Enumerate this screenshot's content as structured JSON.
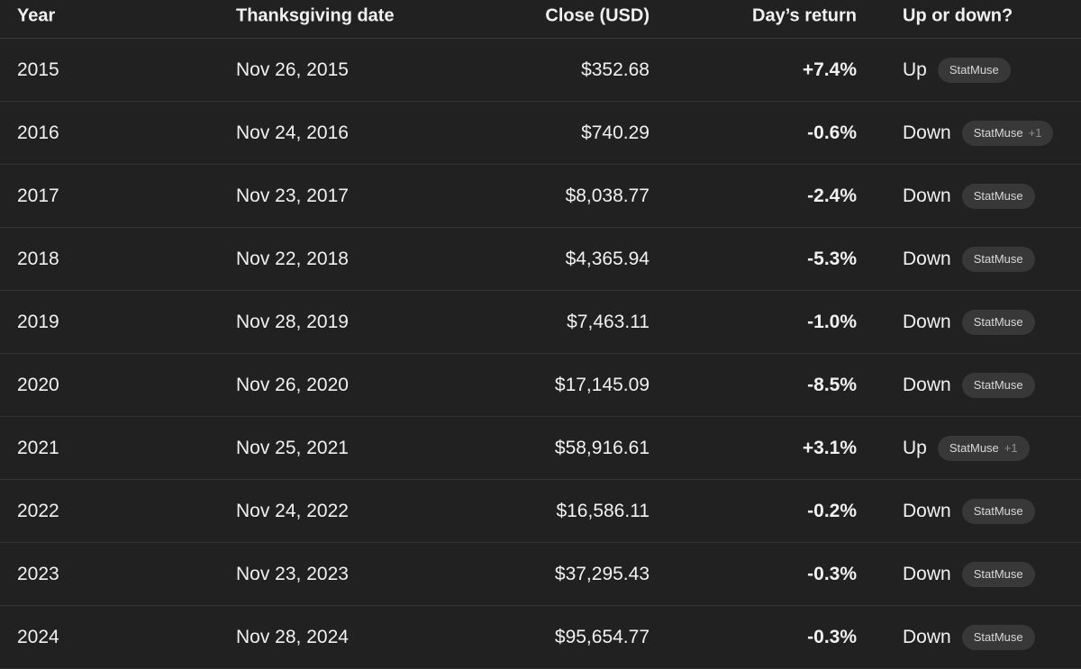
{
  "table": {
    "columns": [
      "Year",
      "Thanksgiving date",
      "Close (USD)",
      "Day’s return",
      "Up or down?"
    ],
    "rows": [
      {
        "year": "2015",
        "date": "Nov 26, 2015",
        "close": "$352.68",
        "return": "+7.4%",
        "direction": "Up",
        "source": "StatMuse"
      },
      {
        "year": "2016",
        "date": "Nov 24, 2016",
        "close": "$740.29",
        "return": "-0.6%",
        "direction": "Down",
        "source": "StatMuse",
        "extra": "+1"
      },
      {
        "year": "2017",
        "date": "Nov 23, 2017",
        "close": "$8,038.77",
        "return": "-2.4%",
        "direction": "Down",
        "source": "StatMuse"
      },
      {
        "year": "2018",
        "date": "Nov 22, 2018",
        "close": "$4,365.94",
        "return": "-5.3%",
        "direction": "Down",
        "source": "StatMuse"
      },
      {
        "year": "2019",
        "date": "Nov 28, 2019",
        "close": "$7,463.11",
        "return": "-1.0%",
        "direction": "Down",
        "source": "StatMuse"
      },
      {
        "year": "2020",
        "date": "Nov 26, 2020",
        "close": "$17,145.09",
        "return": "-8.5%",
        "direction": "Down",
        "source": "StatMuse"
      },
      {
        "year": "2021",
        "date": "Nov 25, 2021",
        "close": "$58,916.61",
        "return": "+3.1%",
        "direction": "Up",
        "source": "StatMuse",
        "extra": "+1"
      },
      {
        "year": "2022",
        "date": "Nov 24, 2022",
        "close": "$16,586.11",
        "return": "-0.2%",
        "direction": "Down",
        "source": "StatMuse"
      },
      {
        "year": "2023",
        "date": "Nov 23, 2023",
        "close": "$37,295.43",
        "return": "-0.3%",
        "direction": "Down",
        "source": "StatMuse"
      },
      {
        "year": "2024",
        "date": "Nov 28, 2024",
        "close": "$95,654.77",
        "return": "-0.3%",
        "direction": "Down",
        "source": "StatMuse"
      }
    ]
  }
}
